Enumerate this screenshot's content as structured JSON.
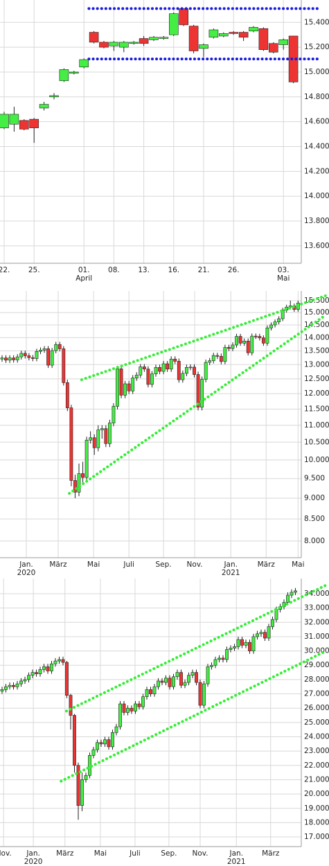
{
  "chart_data": [
    {
      "type": "candlestick",
      "log": false,
      "grid": true,
      "up_color": "#44ee44",
      "down_color": "#ee3333",
      "outline": "#222222",
      "ylim": [
        13460,
        15580
      ],
      "yticks": [
        {
          "value": 13600,
          "label": "13.600"
        },
        {
          "value": 13800,
          "label": "13.800"
        },
        {
          "value": 14000,
          "label": "14.000"
        },
        {
          "value": 14200,
          "label": "14.200"
        },
        {
          "value": 14400,
          "label": "14.400"
        },
        {
          "value": 14600,
          "label": "14.600"
        },
        {
          "value": 14800,
          "label": "14.800"
        },
        {
          "value": 15000,
          "label": "15.000"
        },
        {
          "value": 15200,
          "label": "15.200"
        },
        {
          "value": 15400,
          "label": "15.400"
        }
      ],
      "xticks": [
        {
          "value": 0,
          "label": "22."
        },
        {
          "value": 3,
          "label": "25."
        },
        {
          "value": 8,
          "label": "01.",
          "sublabel": "April"
        },
        {
          "value": 11,
          "label": "08."
        },
        {
          "value": 14,
          "label": "13."
        },
        {
          "value": 17,
          "label": "16."
        },
        {
          "value": 20,
          "label": "21."
        },
        {
          "value": 23,
          "label": "26."
        },
        {
          "value": 28,
          "label": "03.",
          "sublabel": "Mai"
        }
      ],
      "open": [
        14550,
        14580,
        14610,
        14620,
        14710,
        14800,
        14930,
        14990,
        15040,
        15320,
        15240,
        15210,
        15200,
        15230,
        15270,
        15260,
        15270,
        15300,
        15510,
        15370,
        15190,
        15280,
        15290,
        15320,
        15320,
        15330,
        15350,
        15230,
        15220,
        15290
      ],
      "high": [
        14680,
        14720,
        14620,
        14630,
        14760,
        14830,
        15030,
        15010,
        15110,
        15330,
        15250,
        15250,
        15250,
        15250,
        15290,
        15290,
        15290,
        15480,
        15510,
        15380,
        15230,
        15350,
        15320,
        15330,
        15330,
        15370,
        15360,
        15240,
        15270,
        15290
      ],
      "low": [
        14540,
        14520,
        14530,
        14430,
        14690,
        14780,
        14920,
        14980,
        15030,
        15230,
        15190,
        15170,
        15160,
        15220,
        15210,
        15250,
        15260,
        15290,
        15370,
        15150,
        15120,
        15270,
        15280,
        15300,
        15250,
        15320,
        15170,
        15150,
        15180,
        14910
      ],
      "close": [
        14660,
        14660,
        14540,
        14550,
        14740,
        14810,
        15020,
        15000,
        15100,
        15240,
        15200,
        15240,
        15240,
        15240,
        15230,
        15280,
        15280,
        15470,
        15380,
        15170,
        15220,
        15340,
        15310,
        15310,
        15280,
        15360,
        15180,
        15160,
        15260,
        14920
      ],
      "trendlines": [
        {
          "x": [
            8.5,
            31.7
          ],
          "y": [
            15511,
            15511
          ],
          "color": "#1a1adb"
        },
        {
          "x": [
            8.5,
            31.7
          ],
          "y": [
            15105,
            15105
          ],
          "color": "#1a1adb"
        }
      ]
    },
    {
      "type": "candlestick",
      "log": true,
      "grid": true,
      "up_color": "#44ee44",
      "down_color": "#ee3333",
      "outline": "#222222",
      "ylim": [
        7640,
        15920
      ],
      "yticks": [
        {
          "value": 8000,
          "label": "8.000"
        },
        {
          "value": 8500,
          "label": "8.500"
        },
        {
          "value": 9000,
          "label": "9.000"
        },
        {
          "value": 9500,
          "label": "9.500"
        },
        {
          "value": 10000,
          "label": "10.000"
        },
        {
          "value": 10500,
          "label": "10.500"
        },
        {
          "value": 11000,
          "label": "11.000"
        },
        {
          "value": 11500,
          "label": "11.500"
        },
        {
          "value": 12000,
          "label": "12.000"
        },
        {
          "value": 12500,
          "label": "12.500"
        },
        {
          "value": 13000,
          "label": "13.000"
        },
        {
          "value": 13500,
          "label": "13.500"
        },
        {
          "value": 14000,
          "label": "14.000"
        },
        {
          "value": 14500,
          "label": "14.500"
        },
        {
          "value": 15000,
          "label": "15.000"
        },
        {
          "value": 15500,
          "label": "15.500"
        }
      ],
      "xticks": [
        {
          "value": 6.3,
          "label": "Jan.",
          "sublabel": "2020"
        },
        {
          "value": 14.6,
          "label": "März"
        },
        {
          "value": 23.8,
          "label": "Mai"
        },
        {
          "value": 33,
          "label": "Juli"
        },
        {
          "value": 42,
          "label": "Sep."
        },
        {
          "value": 50.1,
          "label": "Nov."
        },
        {
          "value": 59.5,
          "label": "Jan.",
          "sublabel": "2021"
        },
        {
          "value": 68.7,
          "label": "März"
        },
        {
          "value": 77,
          "label": "Mai"
        }
      ],
      "open": [
        13200,
        13240,
        13160,
        13240,
        13170,
        13280,
        13410,
        13320,
        13250,
        13220,
        13480,
        13530,
        13580,
        12980,
        13510,
        13740,
        13580,
        12370,
        11540,
        9450,
        9150,
        9630,
        9530,
        10560,
        10630,
        10340,
        10860,
        10900,
        10460,
        11070,
        11590,
        12850,
        11950,
        12330,
        12090,
        12530,
        12630,
        12920,
        12840,
        12310,
        12670,
        12900,
        12760,
        13030,
        12840,
        13200,
        13120,
        12470,
        12690,
        12900,
        12910,
        12650,
        11560,
        12480,
        13080,
        13140,
        13330,
        13300,
        13110,
        13630,
        13590,
        13720,
        14050,
        13790,
        13870,
        13430,
        14060,
        14050,
        13990,
        13790,
        14380,
        14500,
        14620,
        14750,
        15100,
        15230,
        15280,
        15130
      ],
      "high": [
        13340,
        13340,
        13340,
        13340,
        13380,
        13510,
        13510,
        13420,
        13350,
        13580,
        13630,
        13680,
        13680,
        13610,
        13840,
        13840,
        13680,
        12470,
        11640,
        9600,
        9900,
        9950,
        10660,
        10820,
        10730,
        11000,
        11000,
        11000,
        11170,
        11690,
        12950,
        12950,
        12430,
        12430,
        12630,
        12730,
        13020,
        13020,
        12940,
        12770,
        13000,
        13000,
        13130,
        13130,
        13300,
        13300,
        13220,
        12790,
        13000,
        13010,
        13010,
        12750,
        12580,
        13180,
        13240,
        13430,
        13430,
        13400,
        13730,
        13730,
        13820,
        14150,
        14150,
        13970,
        13970,
        14160,
        14160,
        14150,
        14090,
        14480,
        14600,
        14720,
        14850,
        15200,
        15330,
        15500,
        15380,
        15500
      ],
      "low": [
        13100,
        13060,
        13060,
        13070,
        13070,
        13180,
        13220,
        13150,
        13120,
        13120,
        13380,
        13430,
        12880,
        12880,
        13410,
        13480,
        12270,
        11440,
        9300,
        9000,
        9050,
        9400,
        9430,
        10460,
        10140,
        10240,
        10600,
        10360,
        10360,
        10970,
        11490,
        11850,
        11850,
        11990,
        11990,
        12430,
        12530,
        12740,
        12210,
        12210,
        12570,
        12660,
        12660,
        12740,
        12740,
        13020,
        12370,
        12370,
        12590,
        12800,
        12550,
        11460,
        11460,
        12380,
        12980,
        13040,
        13200,
        13010,
        13010,
        13490,
        13490,
        13620,
        13690,
        13690,
        13330,
        13330,
        13950,
        13890,
        13690,
        13690,
        14280,
        14400,
        14520,
        14650,
        15000,
        15130,
        15030,
        15030
      ],
      "close": [
        13240,
        13160,
        13240,
        13170,
        13280,
        13410,
        13320,
        13250,
        13220,
        13480,
        13530,
        13580,
        12980,
        13510,
        13740,
        13580,
        12370,
        11540,
        9450,
        9150,
        9630,
        9530,
        10560,
        10630,
        10340,
        10860,
        10900,
        10460,
        11070,
        11590,
        12850,
        11950,
        12330,
        12090,
        12530,
        12630,
        12920,
        12840,
        12310,
        12670,
        12900,
        12760,
        13030,
        12840,
        13200,
        13120,
        12470,
        12690,
        12900,
        12910,
        12650,
        11560,
        12480,
        13080,
        13140,
        13330,
        13300,
        13110,
        13630,
        13590,
        13720,
        14050,
        13790,
        13870,
        13430,
        14060,
        14050,
        13990,
        13790,
        14380,
        14500,
        14620,
        14750,
        15100,
        15230,
        15280,
        15130,
        15400
      ],
      "trendlines": [
        {
          "x": [
            20.7,
            84.1
          ],
          "y": [
            12470,
            15710
          ],
          "color": "#33ee33"
        },
        {
          "x": [
            17.5,
            84.1
          ],
          "y": [
            9120,
            14890
          ],
          "color": "#33ee33"
        }
      ]
    },
    {
      "type": "candlestick",
      "log": false,
      "grid": true,
      "up_color": "#44ee44",
      "down_color": "#ee3333",
      "outline": "#222222",
      "ylim": [
        16325,
        35065
      ],
      "yticks": [
        {
          "value": 17000,
          "label": "17.000"
        },
        {
          "value": 18000,
          "label": "18.000"
        },
        {
          "value": 19000,
          "label": "19.000"
        },
        {
          "value": 20000,
          "label": "20.000"
        },
        {
          "value": 21000,
          "label": "21.000"
        },
        {
          "value": 22000,
          "label": "22.000"
        },
        {
          "value": 23000,
          "label": "23.000"
        },
        {
          "value": 24000,
          "label": "24.000"
        },
        {
          "value": 25000,
          "label": "25.000"
        },
        {
          "value": 26000,
          "label": "26.000"
        },
        {
          "value": 27000,
          "label": "27.000"
        },
        {
          "value": 28000,
          "label": "28.000"
        },
        {
          "value": 29000,
          "label": "29.000"
        },
        {
          "value": 30000,
          "label": "30.000"
        },
        {
          "value": 31000,
          "label": "31.000"
        },
        {
          "value": 32000,
          "label": "32.000"
        },
        {
          "value": 33000,
          "label": "33.000"
        },
        {
          "value": 34000,
          "label": "34.000"
        }
      ],
      "xticks": [
        {
          "value": 0.4,
          "label": "Nov."
        },
        {
          "value": 8.2,
          "label": "Jan.",
          "sublabel": "2020"
        },
        {
          "value": 16.5,
          "label": "März"
        },
        {
          "value": 25.8,
          "label": "Mai"
        },
        {
          "value": 34.9,
          "label": "Juli"
        },
        {
          "value": 43.8,
          "label": "Sep."
        },
        {
          "value": 52,
          "label": "Nov."
        },
        {
          "value": 61.5,
          "label": "Jan.",
          "sublabel": "2021"
        },
        {
          "value": 70.5,
          "label": "März"
        }
      ],
      "open": [
        27200,
        27300,
        27500,
        27600,
        27500,
        27700,
        27900,
        28000,
        28300,
        28500,
        28400,
        28700,
        28900,
        28600,
        29100,
        29300,
        29400,
        29200,
        26900,
        25500,
        22000,
        19200,
        21000,
        21300,
        22700,
        23100,
        23600,
        23500,
        23800,
        23300,
        24300,
        24700,
        26300,
        25700,
        26000,
        25800,
        26300,
        26100,
        26800,
        27300,
        27000,
        27500,
        27900,
        27800,
        28100,
        27500,
        28200,
        28500,
        27600,
        27800,
        28300,
        28500,
        27800,
        26200,
        27700,
        28900,
        29000,
        29400,
        29500,
        29400,
        30100,
        30200,
        30300,
        30800,
        30400,
        30600,
        30000,
        31000,
        31200,
        31300,
        30900,
        31700,
        32200,
        32900,
        33100,
        33400,
        33900,
        34100
      ],
      "high": [
        27500,
        27700,
        27800,
        27800,
        27900,
        28100,
        28200,
        28500,
        28700,
        28700,
        28900,
        29100,
        29100,
        29300,
        29500,
        29600,
        29600,
        29300,
        27000,
        25600,
        22200,
        21500,
        21500,
        22900,
        23300,
        23800,
        23800,
        24000,
        24000,
        24500,
        24900,
        26500,
        26500,
        26200,
        26200,
        26500,
        26500,
        27000,
        27500,
        27500,
        27700,
        28100,
        28100,
        28300,
        28300,
        28400,
        28700,
        28700,
        28000,
        28500,
        28700,
        28700,
        28000,
        27900,
        29100,
        29200,
        29600,
        29700,
        29700,
        30300,
        30400,
        30500,
        31000,
        31000,
        30800,
        30800,
        31200,
        31400,
        31500,
        31500,
        31900,
        32400,
        33100,
        33300,
        33600,
        34100,
        34300,
        34400
      ],
      "low": [
        27000,
        27100,
        27300,
        27300,
        27300,
        27500,
        27700,
        27800,
        28100,
        28200,
        28200,
        28500,
        28400,
        28400,
        28900,
        29100,
        29000,
        26700,
        24500,
        21500,
        18200,
        18800,
        20800,
        21100,
        22500,
        22900,
        23300,
        23300,
        23100,
        23100,
        24100,
        24500,
        25500,
        25500,
        25600,
        25600,
        25900,
        25900,
        26600,
        26800,
        26800,
        27300,
        27600,
        27600,
        27300,
        27300,
        28000,
        27400,
        27400,
        27600,
        28100,
        27600,
        26000,
        26000,
        27500,
        28700,
        28800,
        29200,
        29200,
        29200,
        29900,
        30000,
        30100,
        30200,
        30200,
        29800,
        29800,
        30800,
        31000,
        30700,
        30700,
        31500,
        32000,
        32700,
        32900,
        33200,
        33700,
        33900
      ],
      "close": [
        27300,
        27500,
        27600,
        27500,
        27700,
        27900,
        28000,
        28300,
        28500,
        28400,
        28700,
        28900,
        28600,
        29100,
        29300,
        29400,
        29200,
        26900,
        25500,
        22000,
        19200,
        21000,
        21300,
        22700,
        23100,
        23600,
        23500,
        23800,
        23300,
        24300,
        24700,
        26300,
        25700,
        26000,
        25800,
        26300,
        26100,
        26800,
        27300,
        27000,
        27500,
        27900,
        27800,
        28100,
        27500,
        28200,
        28500,
        27600,
        27800,
        28300,
        28500,
        27800,
        26200,
        27700,
        28900,
        29000,
        29400,
        29500,
        29400,
        30100,
        30200,
        30300,
        30800,
        30400,
        30600,
        30000,
        31000,
        31200,
        31300,
        30900,
        31700,
        32200,
        32900,
        33100,
        33400,
        33900,
        34100,
        34200
      ],
      "trendlines": [
        {
          "x": [
            16.9,
            84.9
          ],
          "y": [
            25800,
            34580
          ],
          "color": "#33ee33"
        },
        {
          "x": [
            15.5,
            84.9
          ],
          "y": [
            20900,
            29980
          ],
          "color": "#33ee33"
        }
      ]
    }
  ]
}
